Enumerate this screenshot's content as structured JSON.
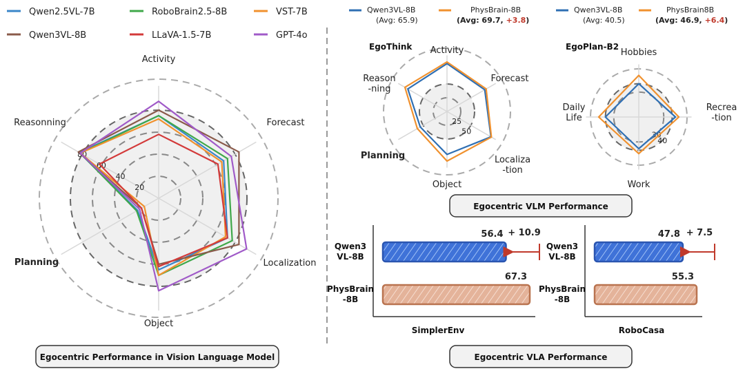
{
  "colors": {
    "qwen25": "#3a86c8",
    "robobrain": "#3fa84a",
    "vst": "#f0912e",
    "qwen3": "#8a5a4a",
    "llava": "#d33a3a",
    "gpt4o": "#a05ac8",
    "qwen3_right": "#2f6fb3",
    "physbrain": "#f0912e",
    "delta": "#c0392b",
    "planning": "#b22222",
    "bar_blue": "#3f72d8",
    "bar_tan": "#e4b39a"
  },
  "left_legend": [
    "Qwen2.5VL-7B",
    "RoboBrain2.5-8B",
    "VST-7B",
    "Qwen3VL-8B",
    "LLaVA-1.5-7B",
    "GPT-4o"
  ],
  "left_panel_title": "Egocentric Performance in Vision Language Model",
  "right_legend": [
    {
      "name": "Qwen3VL-8B",
      "avg": "(Avg: 65.9)"
    },
    {
      "name": "PhysBrain-8B",
      "avg_prefix": "(Avg: 69.7, ",
      "avg_delta": "+3.8",
      "avg_suffix": ")"
    },
    {
      "name": "Qwen3VL-8B",
      "avg": "(Avg: 40.5)"
    },
    {
      "name": "PhysBrain8B",
      "avg_prefix": "(Avg: 46.9, ",
      "avg_delta": "+6.4",
      "avg_suffix": ")"
    }
  ],
  "vlm_title": "Egocentric VLM Performance",
  "vla_title": "Egocentric VLA Performance",
  "chart_data": [
    {
      "type": "radar",
      "id": "main",
      "axes": [
        "Activity",
        "Forecast",
        "Localization",
        "Object",
        "Planning",
        "Reasonning"
      ],
      "highlight_axis": "Planning",
      "rmax": 100,
      "rings": [
        20,
        40,
        60,
        80
      ],
      "tick_labels": [
        "20",
        "40",
        "60",
        "80"
      ],
      "series": [
        {
          "name": "Qwen2.5VL-7B",
          "color_key": "qwen25",
          "values": [
            75,
            68,
            72,
            65,
            22,
            83
          ]
        },
        {
          "name": "RoboBrain2.5-8B",
          "color_key": "robobrain",
          "values": [
            75,
            72,
            77,
            70,
            23,
            82
          ]
        },
        {
          "name": "VST-7B",
          "color_key": "vst",
          "values": [
            72,
            66,
            70,
            70,
            15,
            82
          ]
        },
        {
          "name": "Qwen3VL-8B",
          "color_key": "qwen3",
          "values": [
            80,
            84,
            84,
            60,
            18,
            84
          ]
        },
        {
          "name": "LLaVA-1.5-7B",
          "color_key": "llava",
          "values": [
            58,
            62,
            72,
            62,
            18,
            62
          ]
        },
        {
          "name": "GPT-4o",
          "color_key": "gpt4o",
          "values": [
            88,
            76,
            92,
            84,
            20,
            82
          ]
        }
      ]
    },
    {
      "type": "radar",
      "id": "egothink",
      "title": "EgoThink",
      "axes": [
        "Activity",
        "Forecast",
        "Localiza\n-tion",
        "Object",
        "Planning",
        "Reason\n-ning"
      ],
      "highlight_axis": "Planning",
      "rmax": 100,
      "rings": [
        25,
        50
      ],
      "tick_labels": [
        "25",
        "50"
      ],
      "series": [
        {
          "name": "Qwen3VL-8B",
          "color_key": "qwen3_right",
          "values": [
            87,
            79,
            92,
            78,
            56,
            82
          ]
        },
        {
          "name": "PhysBrain-8B",
          "color_key": "physbrain",
          "values": [
            90,
            82,
            93,
            90,
            62,
            88
          ]
        }
      ]
    },
    {
      "type": "radar",
      "id": "egoplan",
      "title": "EgoPlan-B2",
      "axes": [
        "Hobbies",
        "Recrea\n-tion",
        "Work",
        "Daily\nLife"
      ],
      "rmax": 62,
      "rings": [
        30,
        40
      ],
      "tick_labels": [
        "30",
        "40"
      ],
      "series": [
        {
          "name": "Qwen3VL-8B",
          "color_key": "qwen3_right",
          "values": [
            40,
            44,
            38,
            40
          ]
        },
        {
          "name": "PhysBrain8B",
          "color_key": "physbrain",
          "values": [
            50,
            48,
            44,
            48
          ]
        }
      ]
    },
    {
      "type": "bar",
      "id": "simplerenv",
      "xlabel": "SimplerEnv",
      "categories": [
        "Qwen3\nVL-8B",
        "PhysBrain\n-8B"
      ],
      "values": [
        56.4,
        67.3
      ],
      "value_labels": [
        "56.4",
        "67.3"
      ],
      "delta_label": "+ 10.9",
      "xlim": [
        0,
        67.3
      ]
    },
    {
      "type": "bar",
      "id": "robocasa",
      "xlabel": "RoboCasa",
      "categories": [
        "Qwen3\nVL-8B",
        "PhysBrain\n-8B"
      ],
      "values": [
        47.8,
        55.3
      ],
      "value_labels": [
        "47.8",
        "55.3"
      ],
      "delta_label": "+ 7.5",
      "xlim": [
        0,
        55.3
      ]
    }
  ]
}
